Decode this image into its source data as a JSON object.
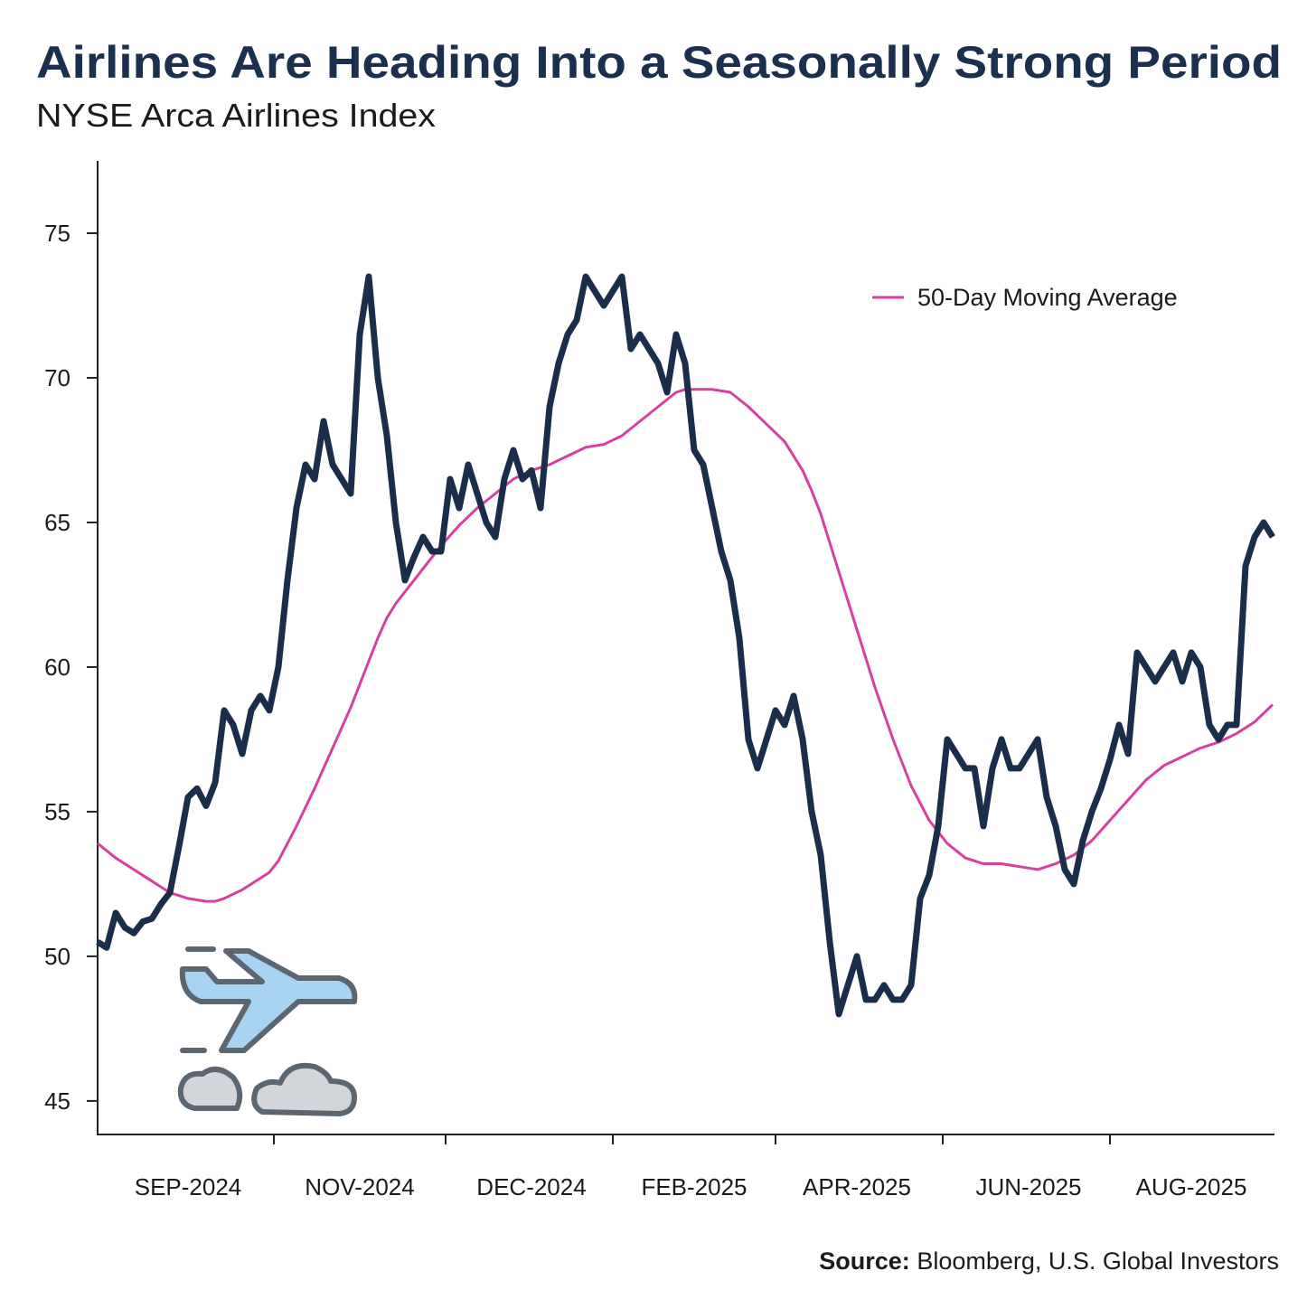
{
  "chart_data": {
    "type": "line",
    "title": "Airlines Are Heading Into a Seasonally Strong Period",
    "subtitle": "NYSE Arca Airlines Index",
    "source_label": "Source:",
    "source": "Bloomberg, U.S. Global Investors",
    "categories": [
      null,
      null,
      null,
      null,
      null,
      null,
      null,
      null,
      null,
      null,
      "SEP-2024",
      null,
      null,
      null,
      null,
      null,
      null,
      null,
      null,
      null,
      null,
      null,
      null,
      null,
      null,
      null,
      null,
      null,
      null,
      "NOV-2024",
      null,
      null,
      null,
      null,
      null,
      null,
      null,
      null,
      null,
      null,
      null,
      null,
      null,
      null,
      null,
      null,
      null,
      null,
      "DEC-2024",
      null,
      null,
      null,
      null,
      null,
      null,
      null,
      null,
      null,
      null,
      null,
      null,
      null,
      null,
      null,
      null,
      null,
      "FEB-2025",
      null,
      null,
      null,
      null,
      null,
      null,
      null,
      null,
      null,
      null,
      null,
      null,
      null,
      null,
      null,
      null,
      null,
      "APR-2025",
      null,
      null,
      null,
      null,
      null,
      null,
      null,
      null,
      null,
      null,
      null,
      null,
      null,
      null,
      null,
      null,
      null,
      null,
      "JUN-2025",
      null,
      null,
      null,
      null,
      null,
      null,
      null,
      null,
      null,
      null,
      null,
      null,
      null,
      null,
      null,
      null,
      null,
      "AUG-2025",
      null,
      null,
      null,
      null,
      null,
      null,
      null,
      null,
      null
    ],
    "series": [
      {
        "name": null,
        "color": "#1a2e4c",
        "values": [
          50.5,
          50.3,
          51.5,
          51,
          50.8,
          51.2,
          51.3,
          51.8,
          52.2,
          53.8,
          55.5,
          55.8,
          55.2,
          56,
          58.5,
          58,
          57,
          58.5,
          59,
          58.5,
          60,
          63,
          65.5,
          67,
          66.5,
          68.5,
          67,
          66.5,
          66,
          71.5,
          73.5,
          70,
          68,
          65,
          63,
          63.8,
          64.5,
          64,
          64,
          66.5,
          65.5,
          67,
          66,
          65,
          64.5,
          66.5,
          67.5,
          66.5,
          66.8,
          65.5,
          69,
          70.5,
          71.5,
          72,
          73.5,
          73,
          72.5,
          73,
          73.5,
          71,
          71.5,
          71,
          70.5,
          69.5,
          71.5,
          70.5,
          67.5,
          67,
          65.5,
          64,
          63,
          61,
          57.5,
          56.5,
          57.5,
          58.5,
          58,
          59,
          57.5,
          55,
          53.5,
          50.5,
          48,
          49,
          50,
          48.5,
          48.5,
          49,
          48.5,
          48.5,
          49,
          52,
          52.8,
          54.5,
          57.5,
          57,
          56.5,
          56.5,
          54.5,
          56.5,
          57.5,
          56.5,
          56.5,
          57,
          57.5,
          55.5,
          54.5,
          53,
          52.5,
          54,
          55,
          55.8,
          56.8,
          58,
          57,
          60.5,
          60,
          59.5,
          60,
          60.5,
          59.5,
          60.5,
          60,
          58,
          57.5,
          58,
          58,
          63.5,
          64.5,
          65,
          64.5
        ]
      },
      {
        "name": "50-Day Moving Average",
        "color": "#d6409f",
        "values": [
          53.9,
          53.65,
          53.4,
          53.2,
          53.0,
          52.8,
          52.6,
          52.4,
          52.2,
          52.1,
          52.0,
          51.95,
          51.9,
          51.9,
          52.0,
          52.15,
          52.3,
          52.5,
          52.7,
          52.9,
          53.3,
          53.9,
          54.5,
          55.15,
          55.8,
          56.5,
          57.2,
          57.9,
          58.6,
          59.4,
          60.2,
          61.0,
          61.7,
          62.2,
          62.6,
          63.0,
          63.4,
          63.8,
          64.2,
          64.55,
          64.9,
          65.2,
          65.5,
          65.75,
          66.0,
          66.25,
          66.5,
          66.65,
          66.8,
          66.9,
          67.0,
          67.15,
          67.3,
          67.45,
          67.6,
          67.65,
          67.7,
          67.85,
          68.0,
          68.25,
          68.5,
          68.75,
          69.0,
          69.25,
          69.5,
          69.6,
          69.6,
          69.6,
          69.6,
          69.55,
          69.5,
          69.25,
          69.0,
          68.7,
          68.4,
          68.1,
          67.8,
          67.3,
          66.8,
          66.1,
          65.3,
          64.3,
          63.3,
          62.3,
          61.3,
          60.3,
          59.3,
          58.4,
          57.5,
          56.7,
          55.9,
          55.3,
          54.7,
          54.3,
          53.9,
          53.65,
          53.4,
          53.3,
          53.2,
          53.2,
          53.2,
          53.15,
          53.1,
          53.05,
          53.0,
          53.1,
          53.2,
          53.35,
          53.5,
          53.75,
          54.0,
          54.35,
          54.7,
          55.05,
          55.4,
          55.75,
          56.1,
          56.35,
          56.6,
          56.75,
          56.9,
          57.05,
          57.2,
          57.3,
          57.4,
          57.55,
          57.7,
          57.9,
          58.1,
          58.4,
          58.7
        ]
      }
    ],
    "ylim": [
      43.84,
      77.5
    ],
    "yticks": [
      45,
      50,
      55,
      60,
      65,
      70,
      75
    ],
    "grid": false,
    "legend": "upper right"
  }
}
